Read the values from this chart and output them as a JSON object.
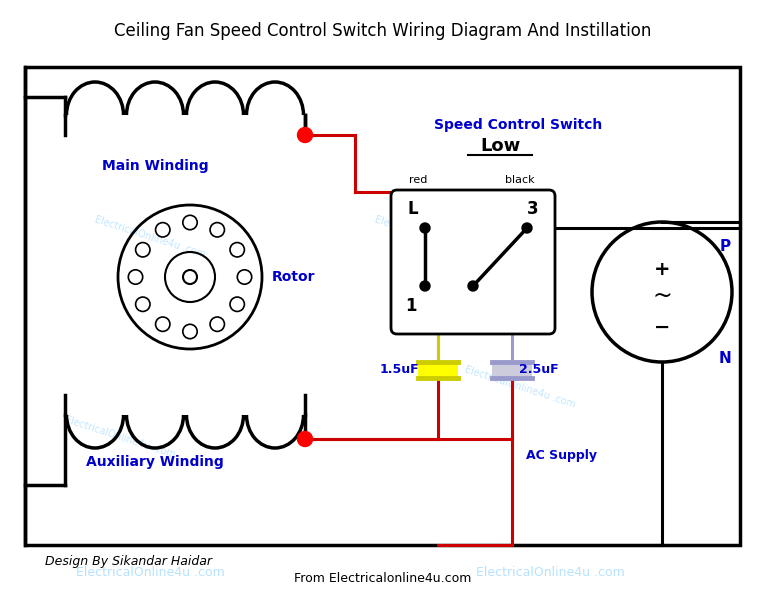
{
  "title": "Ceiling Fan Speed Control Switch Wiring Diagram And Instillation",
  "title_fontsize": 12,
  "bg_color": "#ffffff",
  "border_color": "#000000",
  "blue_color": "#0000cc",
  "red_color": "#cc0000",
  "yellow_color": "#ffff00",
  "purple_color": "#9999cc",
  "watermark_color": "#aaddff",
  "label_main_winding": "Main Winding",
  "label_aux_winding": "Auxiliary Winding",
  "label_rotor": "Rotor",
  "label_speed_switch": "Speed Control Switch",
  "label_low": "Low",
  "label_L": "L",
  "label_3": "3",
  "label_1": "1",
  "label_red": "red",
  "label_black": "black",
  "label_P": "P",
  "label_N": "N",
  "label_cap1": "1.5uF",
  "label_cap2": "2.5uF",
  "label_ac": "AC Supply",
  "label_design": "Design By Sikandar Haidar",
  "label_from": "From Electricalonline4u.com",
  "label_watermark": "ElectricalOnline4u .com"
}
